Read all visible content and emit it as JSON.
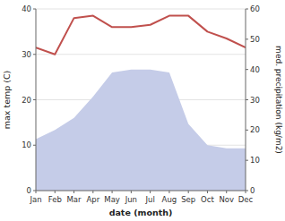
{
  "chart_data": {
    "type": "line",
    "categories": [
      "Jan",
      "Feb",
      "Mar",
      "Apr",
      "May",
      "Jun",
      "Jul",
      "Aug",
      "Sep",
      "Oct",
      "Nov",
      "Dec"
    ],
    "series": [
      {
        "type": "area",
        "axis": "y2",
        "color": "#c5cce8",
        "values": [
          17,
          20,
          24,
          31,
          39,
          40,
          40,
          39,
          22,
          15,
          14,
          14
        ]
      },
      {
        "type": "line",
        "color": "#c0504d",
        "values": [
          31.5,
          30.0,
          38.0,
          38.5,
          36.0,
          36.0,
          36.5,
          38.5,
          38.5,
          35.0,
          33.5,
          31.5
        ]
      }
    ],
    "xlabel": "date (month)",
    "ylabel": "max temp (C)",
    "y2label": "med. precipitation (kg/m2)",
    "ylim": [
      0,
      40
    ],
    "yticks": [
      0,
      10,
      20,
      30,
      40
    ],
    "y2lim": [
      0,
      60
    ],
    "y2ticks": [
      0,
      10,
      20,
      30,
      40,
      50,
      60
    ],
    "grid": true
  }
}
